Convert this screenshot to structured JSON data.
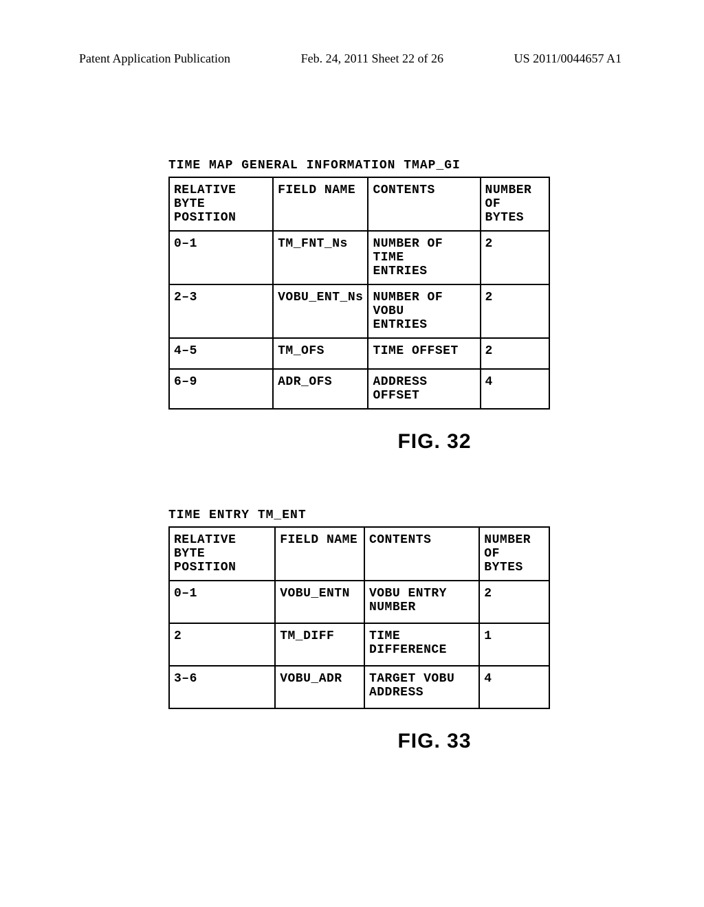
{
  "header": {
    "left": "Patent Application Publication",
    "center": "Feb. 24, 2011  Sheet 22 of 26",
    "right": "US 2011/0044657 A1"
  },
  "table1": {
    "title": "TIME MAP GENERAL INFORMATION TMAP_GI",
    "columns": [
      "RELATIVE BYTE\nPOSITION",
      "FIELD NAME",
      "CONTENTS",
      "NUMBER OF\nBYTES"
    ],
    "rows": [
      {
        "position": "0–1",
        "field": "TM_FNT_Ns",
        "contents": "NUMBER OF TIME\nENTRIES",
        "bytes": "2",
        "tall": true
      },
      {
        "position": "2–3",
        "field": "VOBU_ENT_Ns",
        "contents": "NUMBER OF VOBU\nENTRIES",
        "bytes": "2",
        "tall": true
      },
      {
        "position": "4–5",
        "field": "TM_OFS",
        "contents": "TIME OFFSET",
        "bytes": "2",
        "tall": false
      },
      {
        "position": "6–9",
        "field": "ADR_OFS",
        "contents": "ADDRESS OFFSET",
        "bytes": "4",
        "tall": false
      }
    ],
    "caption": "FIG. 32"
  },
  "table2": {
    "title": "TIME ENTRY TM_ENT",
    "columns": [
      "RELATIVE BYTE\nPOSITION",
      "FIELD NAME",
      "CONTENTS",
      "NUMBER OF\nBYTES"
    ],
    "rows": [
      {
        "position": "0–1",
        "field": "VOBU_ENTN",
        "contents": "VOBU ENTRY\nNUMBER",
        "bytes": "2",
        "tall": true
      },
      {
        "position": "2",
        "field": "TM_DIFF",
        "contents": "TIME\nDIFFERENCE",
        "bytes": "1",
        "tall": true
      },
      {
        "position": "3–6",
        "field": "VOBU_ADR",
        "contents": "TARGET VOBU\nADDRESS",
        "bytes": "4",
        "tall": true
      }
    ],
    "caption": "FIG. 33"
  }
}
